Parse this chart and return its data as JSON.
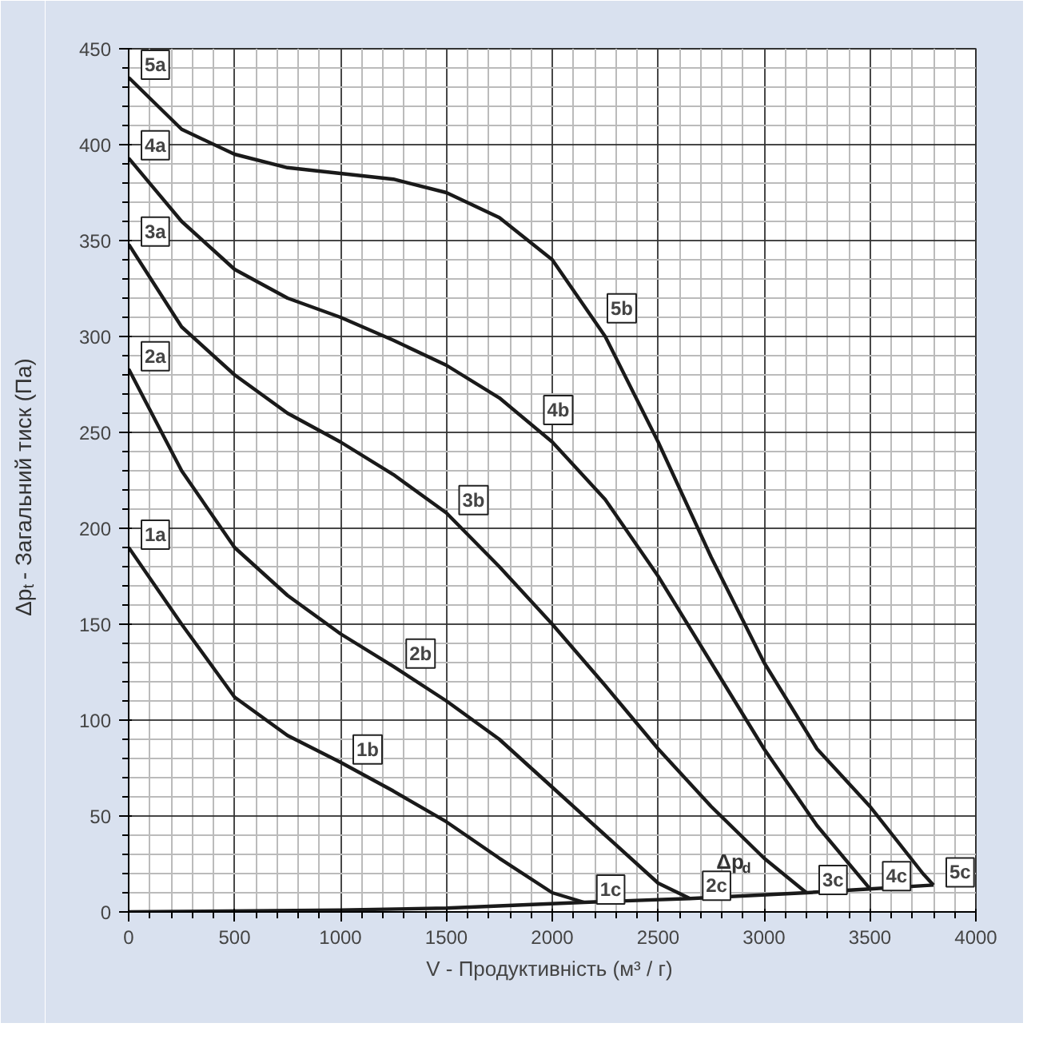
{
  "chart_data": {
    "type": "line",
    "xlabel": "V - Продуктивність  (м³ / г)",
    "ylabel": "Δp$_{t}$ - Загальний тиск (Па)",
    "xlim": [
      0,
      4000
    ],
    "xticks": [
      0,
      500,
      1000,
      1500,
      2000,
      2500,
      3000,
      3500,
      4000
    ],
    "ylim": [
      0,
      450
    ],
    "yticks": [
      0,
      50,
      100,
      150,
      200,
      250,
      300,
      350,
      400,
      450
    ],
    "grid": true,
    "marker": "none",
    "line_style": "solid",
    "series": [
      {
        "color": "#1a1a1a",
        "x": [
          0,
          250,
          500,
          750,
          1000,
          1250,
          1500,
          1750,
          2000,
          2150
        ],
        "values": [
          190,
          150,
          112,
          92,
          78,
          63,
          47,
          28,
          10,
          5
        ]
      },
      {
        "color": "#1a1a1a",
        "x": [
          0,
          250,
          500,
          750,
          1000,
          1250,
          1500,
          1750,
          2000,
          2250,
          2500,
          2650
        ],
        "values": [
          283,
          230,
          190,
          165,
          145,
          128,
          110,
          90,
          65,
          40,
          15,
          7
        ]
      },
      {
        "color": "#1a1a1a",
        "x": [
          0,
          250,
          500,
          750,
          1000,
          1250,
          1500,
          1750,
          2000,
          2250,
          2500,
          2750,
          3000,
          3200
        ],
        "values": [
          348,
          305,
          280,
          260,
          245,
          228,
          208,
          180,
          150,
          118,
          85,
          55,
          28,
          10
        ]
      },
      {
        "color": "#1a1a1a",
        "x": [
          0,
          250,
          500,
          750,
          1000,
          1250,
          1500,
          1750,
          2000,
          2250,
          2500,
          2750,
          3000,
          3250,
          3500
        ],
        "values": [
          393,
          360,
          335,
          320,
          310,
          298,
          285,
          268,
          245,
          215,
          175,
          130,
          85,
          45,
          12
        ]
      },
      {
        "color": "#1a1a1a",
        "x": [
          0,
          250,
          500,
          750,
          1000,
          1250,
          1500,
          1750,
          2000,
          2250,
          2500,
          2750,
          3000,
          3250,
          3500,
          3750,
          3800
        ],
        "values": [
          435,
          408,
          395,
          388,
          385,
          382,
          375,
          362,
          340,
          300,
          245,
          185,
          130,
          85,
          55,
          20,
          14
        ]
      },
      {
        "color": "#1a1a1a",
        "x": [
          0,
          1000,
          1500,
          2150,
          2650,
          3200,
          3500,
          3800
        ],
        "values": [
          0,
          1,
          2,
          5,
          7,
          10,
          12,
          14
        ]
      }
    ],
    "annotations": [
      {
        "text": "1a",
        "x": 0,
        "y": 190
      },
      {
        "text": "2a",
        "x": 0,
        "y": 283
      },
      {
        "text": "3a",
        "x": 0,
        "y": 348
      },
      {
        "text": "4a",
        "x": 0,
        "y": 393
      },
      {
        "text": "5a",
        "x": 0,
        "y": 435
      },
      {
        "text": "1b",
        "x": 1000,
        "y": 78
      },
      {
        "text": "2b",
        "x": 1250,
        "y": 128
      },
      {
        "text": "3b",
        "x": 1500,
        "y": 208
      },
      {
        "text": "4b",
        "x": 1900,
        "y": 255
      },
      {
        "text": "5b",
        "x": 2200,
        "y": 308
      },
      {
        "text": "1c",
        "x": 2150,
        "y": 5
      },
      {
        "text": "2c",
        "x": 2650,
        "y": 7
      },
      {
        "text": "3c",
        "x": 3200,
        "y": 10
      },
      {
        "text": "4c",
        "x": 3500,
        "y": 12
      },
      {
        "text": "5c",
        "x": 3800,
        "y": 14
      },
      {
        "text": "Δp$_{d}$",
        "x": 2850,
        "y": 8
      }
    ]
  }
}
